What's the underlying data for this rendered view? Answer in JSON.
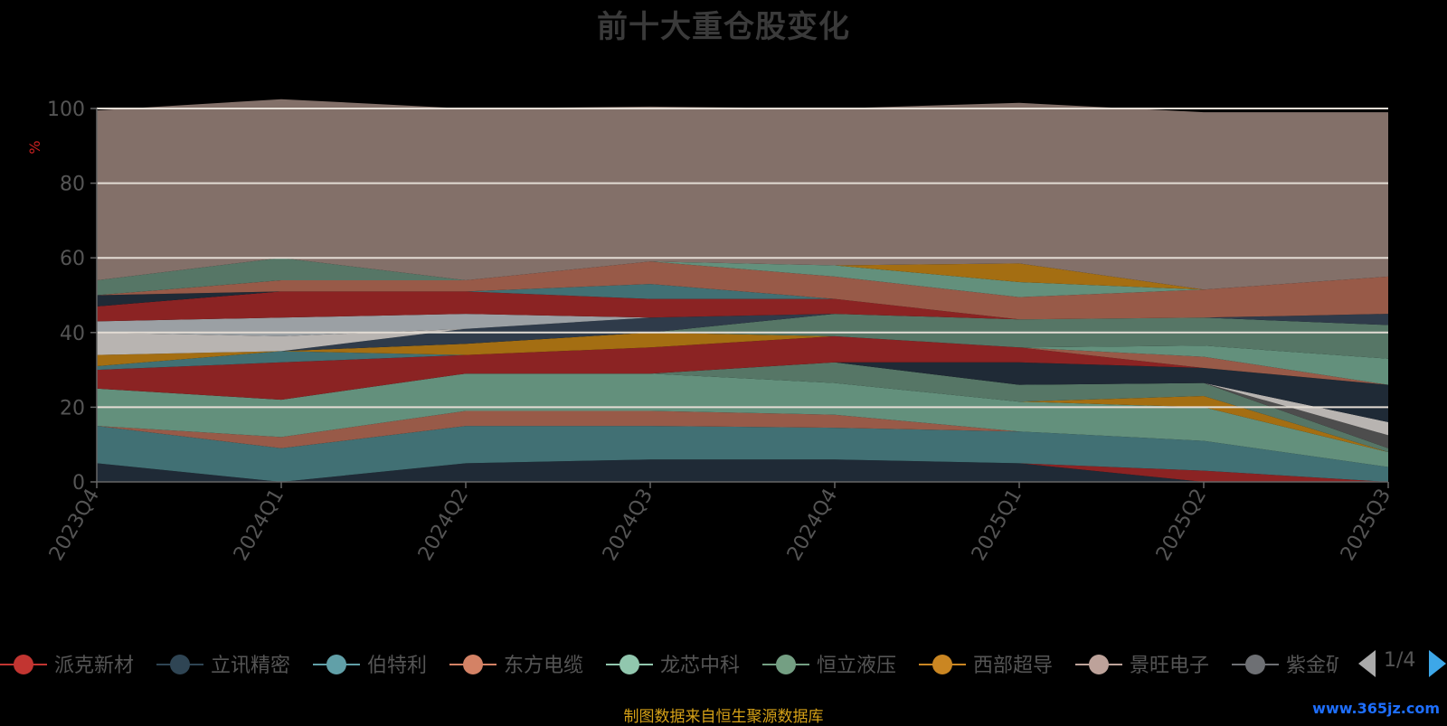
{
  "title": "前十大重仓股变化",
  "footer": "制图数据来自恒生聚源数据库",
  "watermark": "www.365jz.com",
  "legend_page": "1/4",
  "chart_data": {
    "type": "area",
    "stacked": true,
    "title": "前十大重仓股变化",
    "ylabel": "%",
    "ylim": [
      0,
      100
    ],
    "yticks": [
      0,
      20,
      40,
      60,
      80,
      100
    ],
    "grid": true,
    "legend_position": "bottom",
    "categories": [
      "2023Q4",
      "2024Q1",
      "2024Q2",
      "2024Q3",
      "2024Q4",
      "2025Q1",
      "2025Q2",
      "2025Q3"
    ],
    "series": [
      {
        "color": "#1f2a36",
        "values": [
          5,
          0,
          5,
          6,
          6,
          5,
          0,
          0
        ]
      },
      {
        "color": "#8b2323",
        "values": [
          0,
          0,
          0,
          0,
          0,
          0,
          3,
          0
        ]
      },
      {
        "color": "#417074",
        "values": [
          10,
          9,
          10,
          9,
          8.5,
          8.5,
          8,
          4
        ]
      },
      {
        "color": "#985a48",
        "values": [
          0,
          3,
          4,
          4,
          3.5,
          0,
          0,
          0
        ]
      },
      {
        "color": "#63907c",
        "values": [
          10,
          10,
          10,
          10,
          8.5,
          8,
          9,
          4
        ]
      },
      {
        "color": "#a46e12",
        "values": [
          0,
          0,
          0,
          0,
          0,
          0,
          3,
          0
        ]
      },
      {
        "color": "#567666",
        "values": [
          0,
          0,
          0,
          0,
          5.5,
          4.5,
          3.5,
          1
        ]
      },
      {
        "color": "#4d4d4d",
        "values": [
          0,
          0,
          0,
          0,
          0,
          0,
          0,
          3.5
        ]
      },
      {
        "color": "#b8b4b1",
        "values": [
          0,
          0,
          0,
          0,
          0,
          0,
          0,
          3.5
        ]
      },
      {
        "color": "#1f2a36",
        "values": [
          0,
          0,
          0,
          0,
          0,
          6,
          4,
          10
        ]
      },
      {
        "color": "#8b2323",
        "values": [
          5,
          10,
          5,
          7,
          7,
          4,
          0,
          0
        ]
      },
      {
        "color": "#417074",
        "values": [
          1,
          3,
          0,
          0,
          0,
          0,
          0,
          0
        ]
      },
      {
        "color": "#985a48",
        "values": [
          0,
          0,
          0,
          0,
          0,
          0,
          3,
          0
        ]
      },
      {
        "color": "#63907c",
        "values": [
          0,
          0,
          0,
          0,
          0,
          0,
          3,
          7
        ]
      },
      {
        "color": "#a46e12",
        "values": [
          3,
          0,
          3,
          4,
          0,
          0,
          0,
          0
        ]
      },
      {
        "color": "#567666",
        "values": [
          0,
          0,
          0,
          0,
          6,
          7.5,
          7.5,
          9
        ]
      },
      {
        "color": "#2f3b4a",
        "values": [
          0,
          0,
          4,
          4,
          0,
          0,
          0,
          3
        ]
      },
      {
        "color": "#b8b4b1",
        "values": [
          6,
          4,
          0,
          0,
          0,
          0,
          0,
          0
        ]
      },
      {
        "color": "#9ba0a4",
        "values": [
          3,
          5,
          4,
          0,
          0,
          0,
          0,
          0
        ]
      },
      {
        "color": "#8b2323",
        "values": [
          4,
          7,
          6,
          5,
          4,
          0,
          0,
          0
        ]
      },
      {
        "color": "#1f2a36",
        "values": [
          3,
          0,
          0,
          0,
          0,
          0,
          0,
          0
        ]
      },
      {
        "color": "#417074",
        "values": [
          0,
          0,
          0,
          4,
          0,
          0,
          0,
          0
        ]
      },
      {
        "color": "#985a48",
        "values": [
          0,
          3,
          3,
          6,
          6,
          6,
          7.5,
          10
        ]
      },
      {
        "color": "#63907c",
        "values": [
          0,
          0,
          0,
          0,
          3,
          4,
          0,
          0
        ]
      },
      {
        "color": "#a46e12",
        "values": [
          0,
          0,
          0,
          0,
          0,
          5,
          0,
          0
        ]
      },
      {
        "color": "#567666",
        "values": [
          4,
          6,
          0,
          0,
          0,
          0,
          0,
          0
        ]
      },
      {
        "color": "#837069",
        "values": [
          45.5,
          42.5,
          46,
          41.5,
          42,
          43,
          47.5,
          44
        ]
      }
    ],
    "legend": [
      {
        "name": "派克新材",
        "color": "#c23531"
      },
      {
        "name": "立讯精密",
        "color": "#2f4554"
      },
      {
        "name": "伯特利",
        "color": "#61a0a8"
      },
      {
        "name": "东方电缆",
        "color": "#d48265"
      },
      {
        "name": "龙芯中科",
        "color": "#91c7ae"
      },
      {
        "name": "恒立液压",
        "color": "#749f83"
      },
      {
        "name": "西部超导",
        "color": "#ca8622"
      },
      {
        "name": "景旺电子",
        "color": "#bda29a"
      },
      {
        "name": "紫金矿业",
        "color": "#6e7074"
      }
    ]
  }
}
